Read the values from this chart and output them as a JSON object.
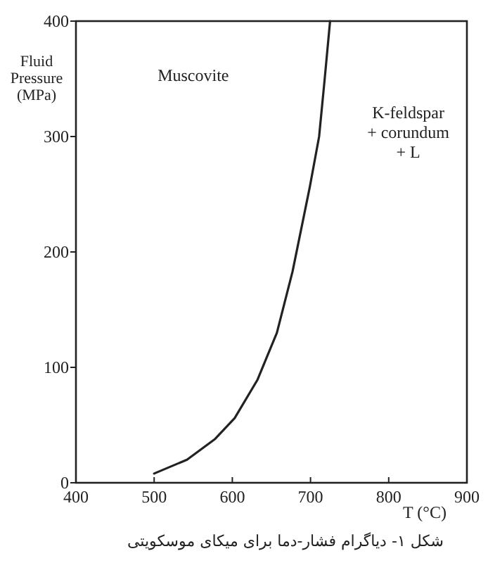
{
  "chart_data": {
    "type": "line",
    "xlabel": "T (°C)",
    "ylabel": "Fluid Pressure (MPa)",
    "xlim": [
      400,
      900
    ],
    "ylim": [
      0,
      400
    ],
    "xticks": [
      400,
      500,
      600,
      700,
      800,
      900
    ],
    "yticks": [
      0,
      100,
      200,
      300,
      400
    ],
    "grid": false,
    "marker": "none",
    "line_style": "solid",
    "series": [
      {
        "color": "#222222",
        "x": [
          500,
          542,
          578,
          603,
          632,
          657,
          677,
          699,
          711,
          718,
          725
        ],
        "values": [
          8,
          20,
          38,
          56,
          89,
          130,
          183,
          256,
          300,
          349,
          400
        ]
      }
    ],
    "annotations": [
      "Muscovite",
      "K-feldspar\n+ corundum\n+ L",
      "شکل ١- دیاگرام فشار-دما برای میکای موسکویتی"
    ]
  }
}
